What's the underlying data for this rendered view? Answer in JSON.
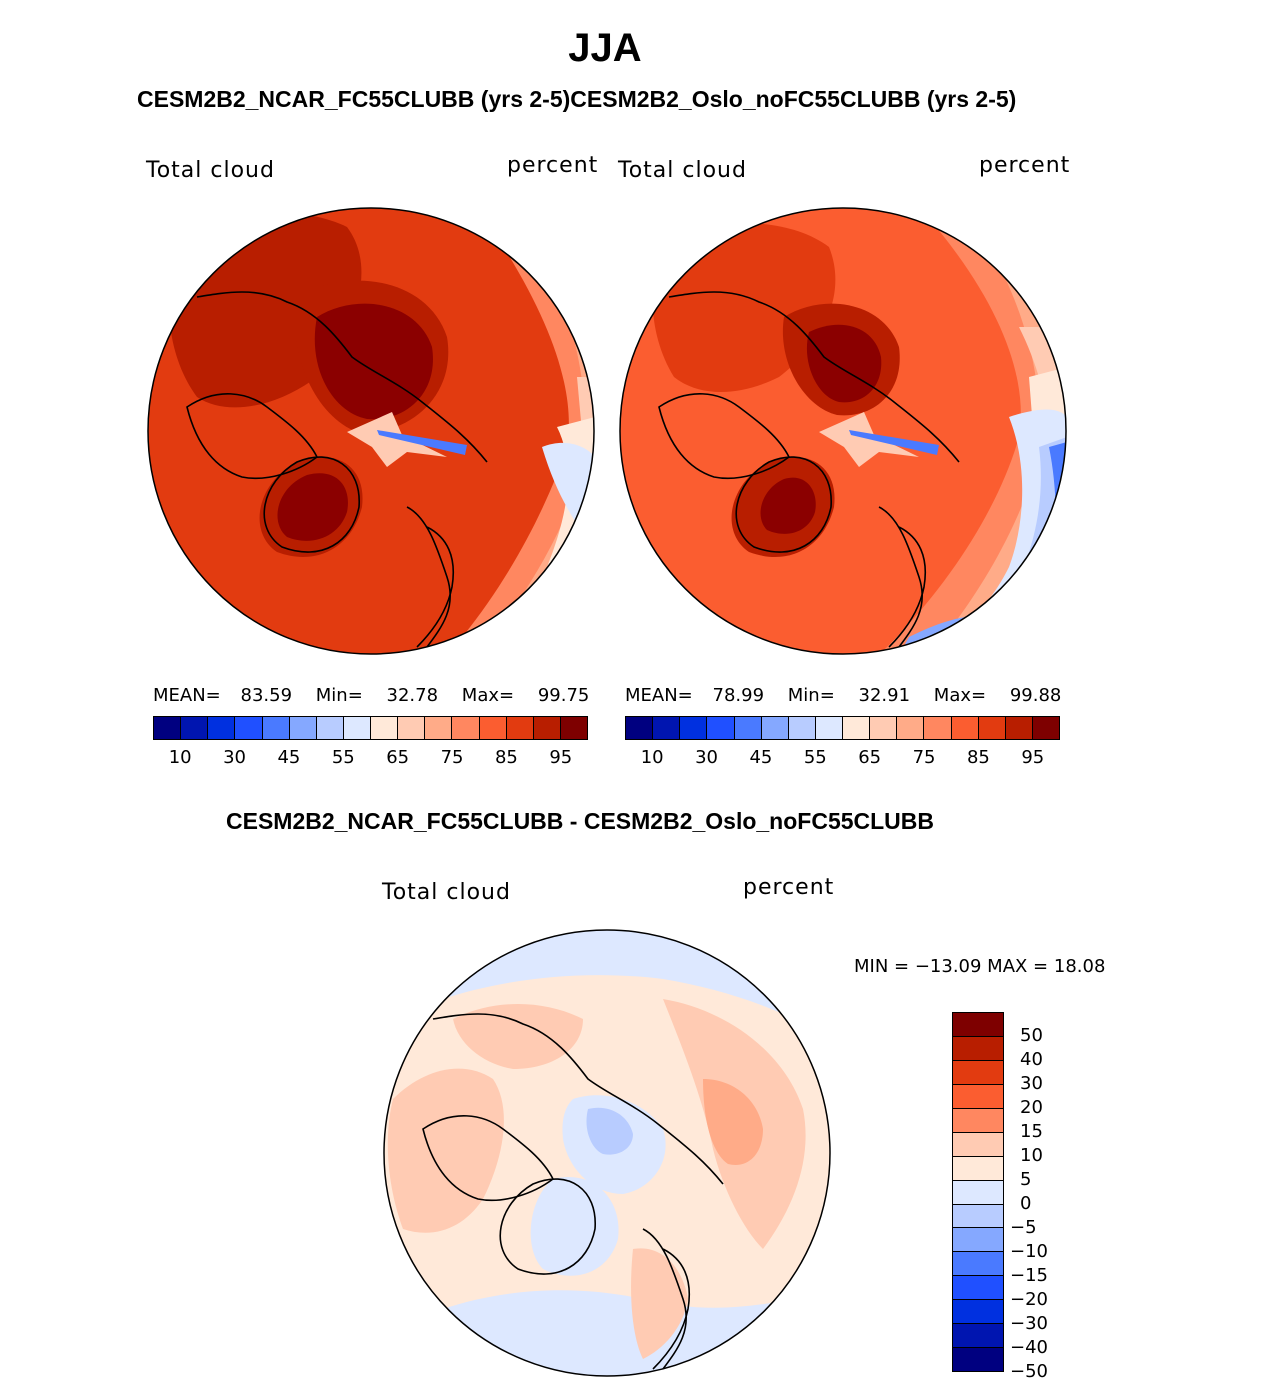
{
  "figure": {
    "title": "JJA",
    "top_subtitle": "CESM2B2_NCAR_FC55CLUBB (yrs 2-5)CESM2B2_Oslo_noFC55CLUBB (yrs 2-5)",
    "diff_subtitle": "CESM2B2_NCAR_FC55CLUBB - CESM2B2_Oslo_noFC55CLUBB"
  },
  "panels": [
    {
      "id": "ncar",
      "left_label": "Total cloud",
      "right_label": "percent",
      "stats": {
        "mean_label": "MEAN=",
        "mean": "83.59",
        "min_label": "Min=",
        "min": "32.78",
        "max_label": "Max=",
        "max": "99.75"
      }
    },
    {
      "id": "oslo",
      "left_label": "Total cloud",
      "right_label": "percent",
      "stats": {
        "mean_label": "MEAN=",
        "mean": "78.99",
        "min_label": "Min=",
        "min": "32.91",
        "max_label": "Max=",
        "max": "99.88"
      }
    }
  ],
  "diff_panel": {
    "left_label": "Total cloud",
    "right_label": "percent",
    "minmax": "MIN = −13.09 MAX =   18.08"
  },
  "abs_colorbar": {
    "colors": [
      "#000080",
      "#0015b0",
      "#0030e0",
      "#2050ff",
      "#4a7aff",
      "#85a8ff",
      "#b8ccff",
      "#dde8ff",
      "#ffe9d9",
      "#ffcbb3",
      "#ffab88",
      "#ff8760",
      "#fb5d30",
      "#e23b10",
      "#b81e00",
      "#7e0000"
    ],
    "tick_labels": [
      "10",
      "30",
      "45",
      "55",
      "65",
      "75",
      "85",
      "95"
    ]
  },
  "diff_colorbar": {
    "colors": [
      "#7e0000",
      "#b81e00",
      "#e23b10",
      "#fb5d30",
      "#ff8760",
      "#ffcbb3",
      "#ffe9d9",
      "#dde8ff",
      "#b8ccff",
      "#85a8ff",
      "#4a7aff",
      "#2050ff",
      "#0030e0",
      "#0015b0",
      "#000080"
    ],
    "tick_labels": [
      "50",
      "40",
      "30",
      "20",
      "15",
      "10",
      "5",
      "0",
      "−5",
      "−10",
      "−15",
      "−20",
      "−30",
      "−40",
      "−50"
    ]
  },
  "map_colors": {
    "deep_red": "#8b0000",
    "dark_red": "#b81e00",
    "red": "#e23b10",
    "orange_red": "#fb5d30",
    "salmon": "#ff8760",
    "light_salmon": "#ffab88",
    "peach": "#ffcbb3",
    "cream": "#ffe9d9",
    "light_blue": "#dde8ff",
    "pale_blue": "#b8ccff",
    "mid_blue": "#85a8ff",
    "blue": "#4a7aff"
  }
}
